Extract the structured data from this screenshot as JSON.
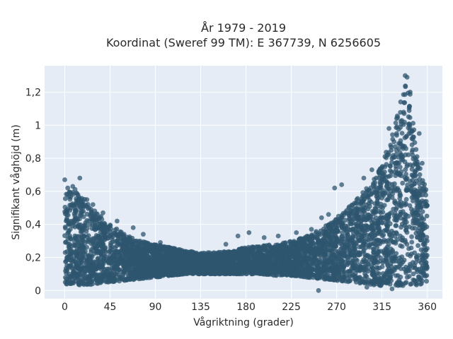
{
  "chart_data": {
    "type": "scatter",
    "title_line1": "År 1979 - 2019",
    "title_line2": "Koordinat (Sweref 99 TM): E 367739, N 6256605",
    "xlabel": "Vågriktning (grader)",
    "ylabel": "Signifikant våghöjd (m)",
    "xlim": [
      -20,
      375
    ],
    "ylim": [
      -0.05,
      1.36
    ],
    "x_ticks": [
      0,
      45,
      90,
      135,
      180,
      225,
      270,
      315,
      360
    ],
    "x_tick_labels": [
      "0",
      "45",
      "90",
      "135",
      "180",
      "225",
      "270",
      "315",
      "360"
    ],
    "y_ticks": [
      0,
      0.2,
      0.4,
      0.6,
      0.8,
      1.0,
      1.2
    ],
    "y_tick_labels": [
      "0",
      "0,2",
      "0,4",
      "0,6",
      "0,8",
      "1",
      "1,2"
    ],
    "grid": true,
    "colors": {
      "background": "#e5ecf6",
      "grid": "#ffffff",
      "marker": "#2f566f"
    },
    "envelope": {
      "direction": [
        0,
        10,
        20,
        30,
        45,
        60,
        75,
        90,
        105,
        120,
        135,
        150,
        165,
        180,
        195,
        210,
        225,
        240,
        255,
        270,
        285,
        300,
        310,
        320,
        330,
        335,
        340,
        345,
        350,
        355,
        360
      ],
      "min_height": [
        0.04,
        0.03,
        0.03,
        0.04,
        0.05,
        0.06,
        0.07,
        0.08,
        0.09,
        0.1,
        0.1,
        0.1,
        0.1,
        0.1,
        0.1,
        0.09,
        0.09,
        0.08,
        0.07,
        0.06,
        0.05,
        0.04,
        0.03,
        0.03,
        0.03,
        0.03,
        0.03,
        0.03,
        0.03,
        0.04,
        0.05
      ],
      "max_height": [
        0.58,
        0.62,
        0.55,
        0.48,
        0.4,
        0.34,
        0.3,
        0.28,
        0.26,
        0.24,
        0.23,
        0.23,
        0.24,
        0.26,
        0.27,
        0.28,
        0.3,
        0.33,
        0.38,
        0.44,
        0.52,
        0.62,
        0.7,
        0.85,
        1.05,
        1.18,
        1.29,
        1.12,
        0.85,
        0.68,
        0.6
      ]
    },
    "outliers": [
      [
        0,
        0.67
      ],
      [
        3,
        0.62
      ],
      [
        8,
        0.63
      ],
      [
        15,
        0.68
      ],
      [
        22,
        0.55
      ],
      [
        28,
        0.52
      ],
      [
        38,
        0.47
      ],
      [
        52,
        0.42
      ],
      [
        68,
        0.38
      ],
      [
        78,
        0.34
      ],
      [
        95,
        0.29
      ],
      [
        160,
        0.28
      ],
      [
        172,
        0.33
      ],
      [
        183,
        0.35
      ],
      [
        198,
        0.32
      ],
      [
        212,
        0.33
      ],
      [
        230,
        0.35
      ],
      [
        245,
        0.37
      ],
      [
        255,
        0.44
      ],
      [
        262,
        0.46
      ],
      [
        268,
        0.62
      ],
      [
        275,
        0.64
      ],
      [
        282,
        0.5
      ],
      [
        290,
        0.55
      ],
      [
        297,
        0.68
      ],
      [
        305,
        0.73
      ],
      [
        310,
        0.6
      ],
      [
        318,
        0.81
      ],
      [
        322,
        0.98
      ],
      [
        327,
        0.9
      ],
      [
        338,
        1.3
      ],
      [
        340,
        1.29
      ],
      [
        343,
        1.2
      ],
      [
        352,
        0.95
      ],
      [
        355,
        0.77
      ],
      [
        252,
        0.0
      ],
      [
        300,
        0.02
      ],
      [
        325,
        0.01
      ]
    ]
  }
}
